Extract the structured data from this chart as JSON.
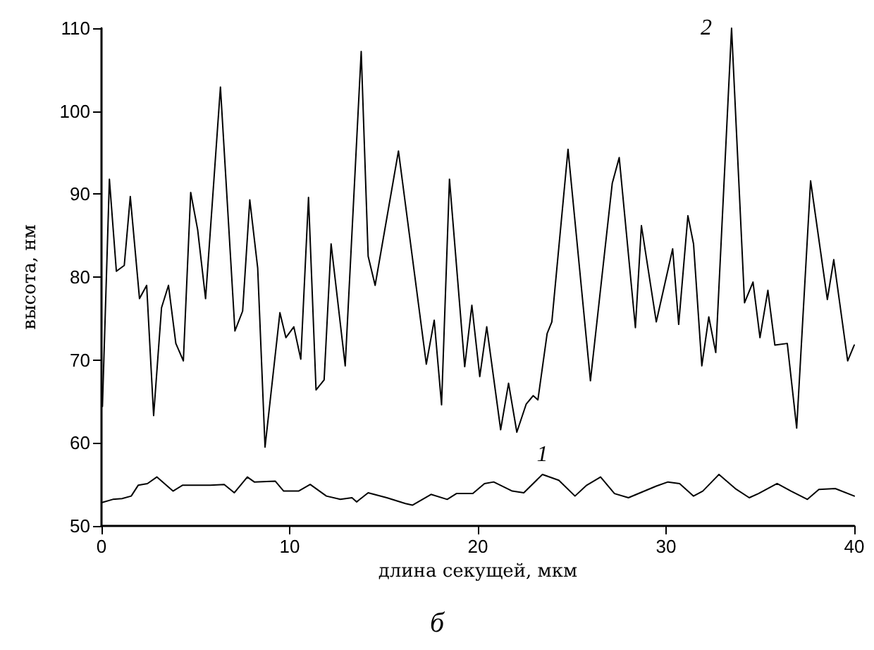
{
  "chart_data": {
    "type": "line",
    "xlabel": "длина секущей, мкм",
    "ylabel": "высота, нм",
    "annotations": [
      "б"
    ],
    "xlim": [
      0,
      40
    ],
    "xticks": [
      0,
      10,
      20,
      30,
      40
    ],
    "ylim": [
      50,
      110
    ],
    "yticks": [
      50,
      60,
      70,
      80,
      90,
      100,
      110
    ],
    "grid": false,
    "legend": false,
    "marker": "none",
    "line_style": "solid",
    "series": [
      {
        "name": "1",
        "color": "#000000",
        "x": [
          0,
          0.6,
          1.09,
          1.58,
          1.95,
          2.44,
          2.94,
          3.8,
          4.3,
          5.04,
          5.78,
          6.52,
          7.06,
          7.75,
          8.12,
          9.23,
          9.68,
          10.47,
          11.09,
          11.95,
          12.69,
          13.31,
          13.56,
          14.17,
          15.16,
          16.15,
          16.52,
          17.51,
          18.37,
          18.86,
          19.73,
          20.35,
          20.84,
          21.83,
          22.44,
          23.43,
          24.3,
          25.16,
          25.78,
          26.52,
          27.26,
          28,
          29.48,
          30.1,
          30.72,
          31.46,
          31.95,
          32.81,
          33.68,
          34.42,
          34.91,
          35.9,
          36.64,
          37.51,
          38.12,
          38.99,
          40
        ],
        "values": [
          52.8,
          53.2,
          53.3,
          53.6,
          54.9,
          55.1,
          55.9,
          54.2,
          54.9,
          54.9,
          54.9,
          55,
          54,
          55.9,
          55.3,
          55.4,
          54.2,
          54.2,
          55,
          53.6,
          53.2,
          53.4,
          52.9,
          54,
          53.4,
          52.7,
          52.5,
          53.8,
          53.2,
          53.9,
          53.9,
          55.1,
          55.3,
          54.2,
          54,
          56.2,
          55.5,
          53.6,
          54.9,
          55.9,
          53.9,
          53.4,
          54.8,
          55.3,
          55.1,
          53.6,
          54.2,
          56.2,
          54.5,
          53.4,
          53.9,
          55.1,
          54.2,
          53.2,
          54.4,
          54.5,
          53.6
        ]
      },
      {
        "name": "2",
        "color": "#000000",
        "x": [
          0.05,
          0.42,
          0.79,
          1.21,
          1.53,
          2.02,
          2.4,
          2.77,
          3.19,
          3.56,
          3.95,
          4.35,
          4.74,
          5.11,
          5.53,
          6.32,
          7.09,
          7.5,
          7.88,
          8.3,
          8.69,
          9.48,
          9.8,
          10.22,
          10.59,
          11,
          11.4,
          11.83,
          12.2,
          12.95,
          13.8,
          14.17,
          14.54,
          15.78,
          17.26,
          17.68,
          18.07,
          18.49,
          19.3,
          19.68,
          20.1,
          20.47,
          21.21,
          21.63,
          22.07,
          22.57,
          22.94,
          23.19,
          23.68,
          23.93,
          24.79,
          25.98,
          27.14,
          27.51,
          28.37,
          28.69,
          29.48,
          30.35,
          30.67,
          31.16,
          31.46,
          31.9,
          32.27,
          32.64,
          33.48,
          34.17,
          34.62,
          34.99,
          35.41,
          35.78,
          36.44,
          36.94,
          37.68,
          38.57,
          38.91,
          39.65,
          40
        ],
        "values": [
          64.4,
          91.8,
          80.7,
          81.4,
          89.7,
          77.4,
          79,
          63.3,
          76.3,
          79,
          72,
          69.9,
          90.2,
          85.7,
          77.4,
          102.9,
          73.5,
          75.9,
          89.3,
          81.1,
          59.5,
          75.7,
          72.7,
          74,
          70.1,
          89.6,
          66.4,
          67.6,
          84,
          69.3,
          107.2,
          82.5,
          79,
          95.2,
          69.5,
          74.8,
          64.6,
          91.8,
          69.2,
          76.6,
          68,
          74,
          61.6,
          67.2,
          61.3,
          64.7,
          65.7,
          65.2,
          73.2,
          74.6,
          95.4,
          67.5,
          91.3,
          94.4,
          73.9,
          86.2,
          74.6,
          83.4,
          74.3,
          87.4,
          84,
          69.3,
          75.2,
          70.9,
          110,
          76.9,
          79.4,
          72.7,
          78.4,
          71.8,
          72,
          61.8,
          91.6,
          77.3,
          82.1,
          69.9,
          71.8
        ]
      }
    ]
  }
}
